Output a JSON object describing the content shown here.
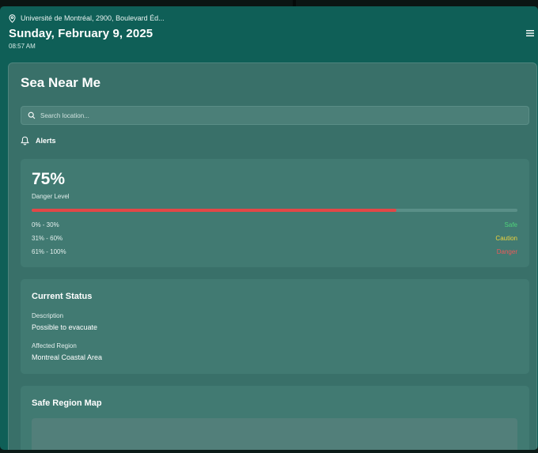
{
  "header": {
    "location": "Université de Montréal, 2900, Boulevard Éd...",
    "date": "Sunday, February 9, 2025",
    "time": "08:57 AM"
  },
  "main": {
    "title": "Sea Near Me",
    "search": {
      "placeholder": "Search location...",
      "value": ""
    },
    "alerts_label": "Alerts"
  },
  "danger": {
    "percent_text": "75%",
    "level_fraction": 0.75,
    "label": "Danger Level",
    "bar_color": "#e24747",
    "legend": [
      {
        "range": "0% - 30%",
        "status": "Safe",
        "color": "#4fd27a"
      },
      {
        "range": "31% - 60%",
        "status": "Caution",
        "color": "#f0d43c"
      },
      {
        "range": "61% - 100%",
        "status": "Danger",
        "color": "#ec5a5a"
      }
    ]
  },
  "status": {
    "title": "Current Status",
    "description_label": "Description",
    "description": "Possible to evacuate",
    "region_label": "Affected Region",
    "region": "Montreal Coastal Area"
  },
  "map": {
    "title": "Safe Region Map"
  },
  "icons": {
    "location": "map-pin-icon",
    "menu": "hamburger-menu-icon",
    "search": "search-icon",
    "alerts": "bell-icon"
  }
}
